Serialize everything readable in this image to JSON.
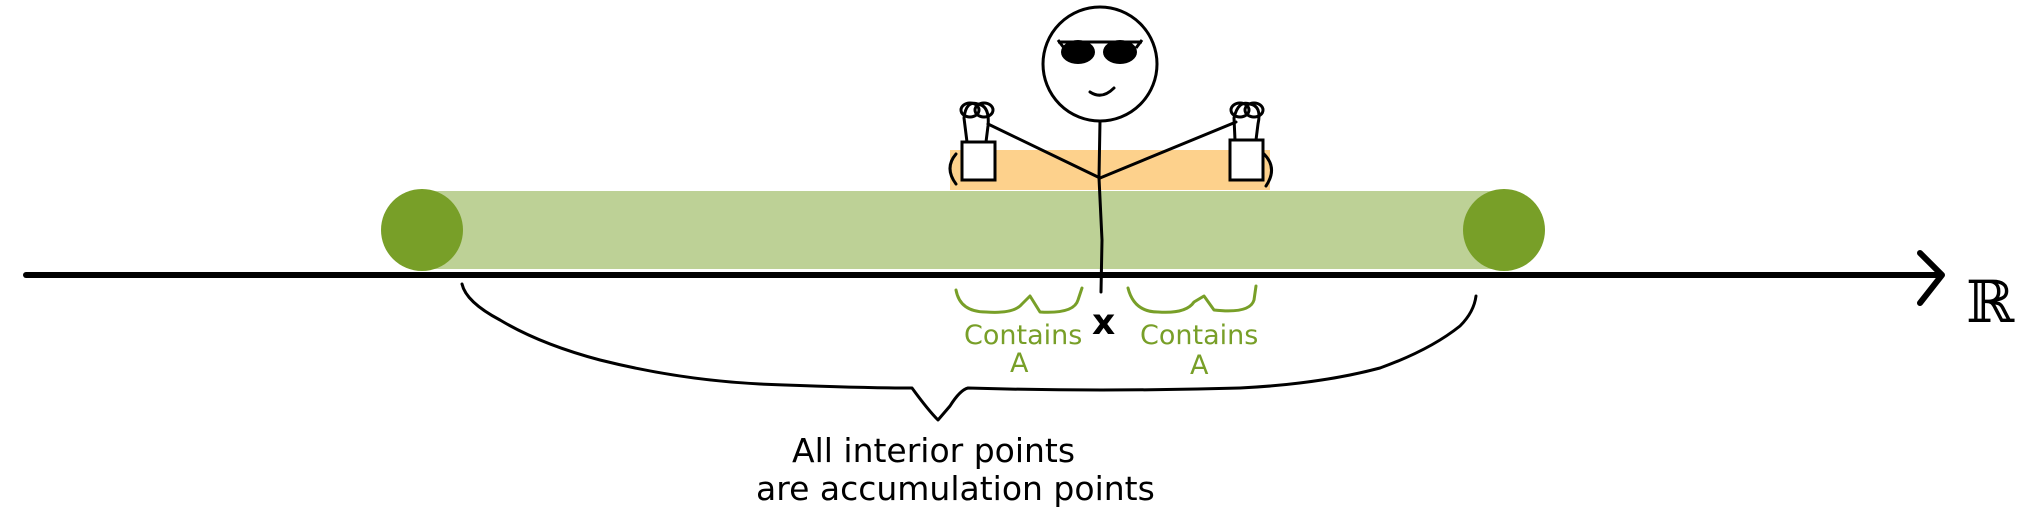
{
  "labels": {
    "axis": "ℝ",
    "point": "x",
    "contains_left_1": "Contains",
    "contains_left_2": "A",
    "contains_right_1": "Contains",
    "contains_right_2": "A",
    "caption_1": "All interior points",
    "caption_2": "are accumulation points"
  },
  "colors": {
    "interval_fill": "#bdd196",
    "endpoint": "#789f28",
    "neighborhood": "#fdd18c",
    "label_green": "#789f28",
    "ink": "#000000"
  },
  "icons": [
    "sunglasses-icon",
    "lock-icon"
  ]
}
